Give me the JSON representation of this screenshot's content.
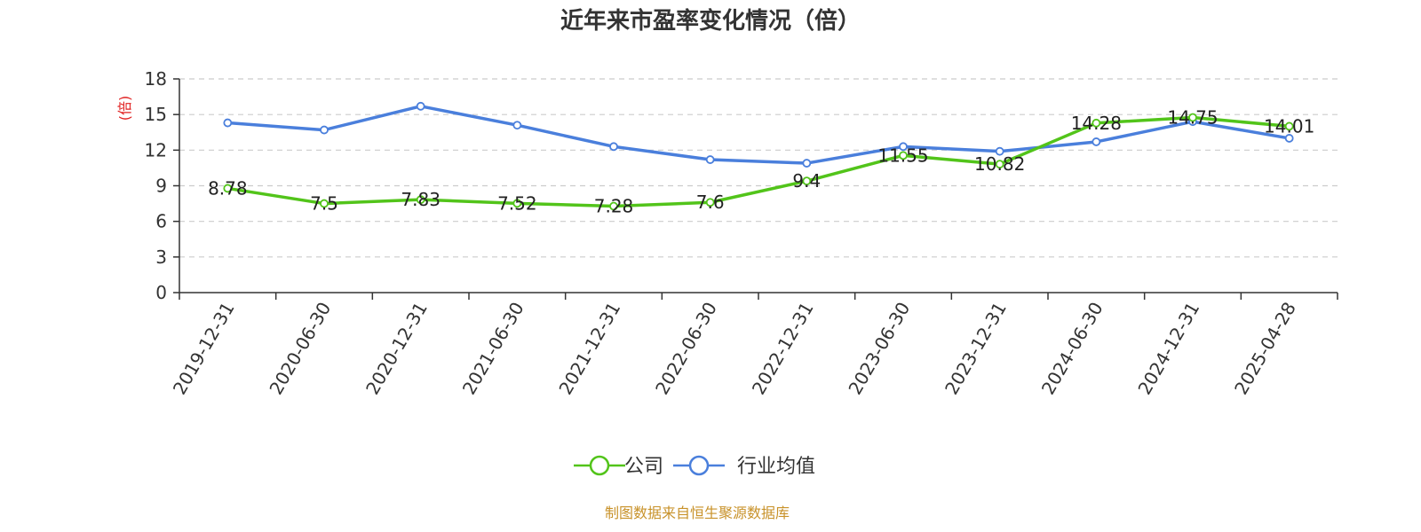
{
  "chart_data": {
    "type": "line",
    "title": "近年来市盈率变化情况（倍）",
    "ylabel": "(倍)",
    "ylim": [
      0,
      18
    ],
    "yticks": [
      0,
      3,
      6,
      9,
      12,
      15,
      18
    ],
    "grid": true,
    "legend_position": "bottom",
    "categories": [
      "2019-12-31",
      "2020-06-30",
      "2020-12-31",
      "2021-06-30",
      "2021-12-31",
      "2022-06-30",
      "2022-12-31",
      "2023-06-30",
      "2023-12-31",
      "2024-06-30",
      "2024-12-31",
      "2025-04-28"
    ],
    "series": [
      {
        "name": "公司",
        "color": "#52c41a",
        "values": [
          8.78,
          7.5,
          7.83,
          7.52,
          7.28,
          7.6,
          9.4,
          11.55,
          10.82,
          14.28,
          14.75,
          14.01
        ],
        "labels": [
          "8.78",
          "7.5",
          "7.83",
          "7.52",
          "7.28",
          "7.6",
          "9.4",
          "11.55",
          "10.82",
          "14.28",
          "14.75",
          "14.01"
        ]
      },
      {
        "name": "行业均值",
        "color": "#4a7fdc",
        "values": [
          14.3,
          13.7,
          15.7,
          14.1,
          12.3,
          11.2,
          10.9,
          12.3,
          11.9,
          12.7,
          14.4,
          13.0
        ]
      }
    ]
  },
  "source_note": "制图数据来自恒生聚源数据库",
  "colors": {
    "ylabel": "#e02020",
    "source": "#c8922a",
    "axis": "#333333",
    "grid": "#cccccc"
  }
}
